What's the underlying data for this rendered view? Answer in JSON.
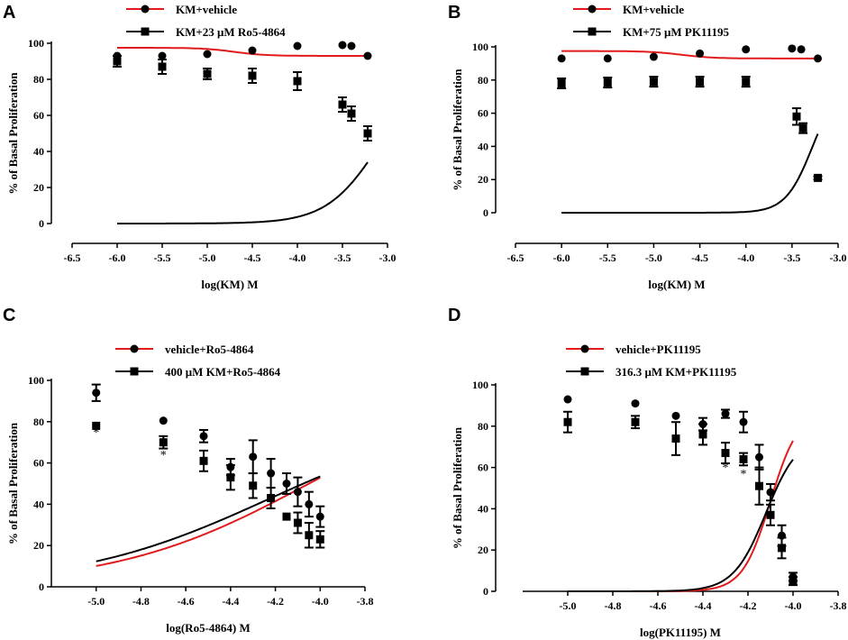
{
  "colors": {
    "red": "#e31a1c",
    "black": "#000000"
  },
  "chart_data": [
    {
      "panel": "A",
      "type": "scatter",
      "xlabel": "log(KM) M",
      "ylabel": "% of Basal Proliferation",
      "xlim": [
        -6.5,
        -3.0
      ],
      "ylim": [
        0,
        100
      ],
      "xticks": [
        "-6.5",
        "-6.0",
        "-5.5",
        "-5.0",
        "-4.5",
        "-4.0",
        "-3.5",
        "-3.0"
      ],
      "yticks": [
        "0",
        "20",
        "40",
        "60",
        "80",
        "100"
      ],
      "series": [
        {
          "name": "KM+vehicle",
          "color": "#e31a1c",
          "marker": "circle",
          "x": [
            -6.0,
            -5.5,
            -5.0,
            -4.5,
            -4.0,
            -3.5,
            -3.4,
            -3.22
          ],
          "y": [
            93,
            93,
            94,
            96,
            98.5,
            99,
            98.5,
            93
          ],
          "err": [
            0,
            0,
            0,
            0,
            0,
            0,
            0,
            0
          ],
          "curve": {
            "bottom": 93,
            "top": 97.5,
            "logEC50": -4.7,
            "hill": 2.5
          }
        },
        {
          "name": "KM+23 μM Ro5-4864",
          "color": "#000000",
          "marker": "square",
          "x": [
            -6.0,
            -5.5,
            -5.0,
            -4.5,
            -4.0,
            -3.5,
            -3.4,
            -3.22
          ],
          "y": [
            90,
            87,
            83,
            82,
            79,
            66,
            61,
            50
          ],
          "err": [
            3,
            4,
            3,
            4,
            5,
            4,
            4,
            4
          ],
          "curve": {
            "bottom": 0,
            "top": 85.5,
            "logEC50": -3.1,
            "hill": -1.5
          }
        }
      ],
      "annotations": []
    },
    {
      "panel": "B",
      "type": "scatter",
      "xlabel": "log(KM) M",
      "ylabel": "% of Basal Proliferation",
      "xlim": [
        -6.5,
        -3.0
      ],
      "ylim": [
        0,
        100
      ],
      "xticks": [
        "-6.5",
        "-6.0",
        "-5.5",
        "-5.0",
        "-4.5",
        "-4.0",
        "-3.5",
        "-3.0"
      ],
      "yticks": [
        "0",
        "20",
        "40",
        "60",
        "80",
        "100"
      ],
      "series": [
        {
          "name": "KM+vehicle",
          "color": "#e31a1c",
          "marker": "circle",
          "x": [
            -6.0,
            -5.5,
            -5.0,
            -4.5,
            -4.0,
            -3.5,
            -3.4,
            -3.22
          ],
          "y": [
            93,
            93,
            94,
            96,
            98.5,
            99,
            98.5,
            93
          ],
          "err": [
            0,
            0,
            0,
            0,
            0,
            0,
            0,
            0
          ],
          "curve": {
            "bottom": 93,
            "top": 97.5,
            "logEC50": -4.7,
            "hill": 2.5
          }
        },
        {
          "name": "KM+75 μM PK11195",
          "color": "#000000",
          "marker": "square",
          "x": [
            -6.0,
            -5.5,
            -5.0,
            -4.5,
            -4.0,
            -3.45,
            -3.38,
            -3.22
          ],
          "y": [
            78,
            78.5,
            79,
            79,
            79,
            58,
            51,
            21
          ],
          "err": [
            3,
            3,
            3,
            3,
            3,
            5,
            3,
            1
          ],
          "curve": {
            "bottom": 0,
            "top": 79,
            "logEC50": -3.28,
            "hill": -3.0
          }
        }
      ],
      "annotations": []
    },
    {
      "panel": "C",
      "type": "scatter",
      "xlabel": "log(Ro5-4864) M",
      "ylabel": "% of Basal Proliferation",
      "xlim": [
        -5.2,
        -3.8
      ],
      "ylim": [
        0,
        100
      ],
      "xticks": [
        "-5.0",
        "-4.8",
        "-4.6",
        "-4.4",
        "-4.2",
        "-4.0",
        "-3.8"
      ],
      "yticks": [
        "0",
        "20",
        "40",
        "60",
        "80",
        "100"
      ],
      "series": [
        {
          "name": "vehicle+Ro5-4864",
          "color": "#e31a1c",
          "marker": "circle",
          "x": [
            -5.0,
            -4.7,
            -4.52,
            -4.4,
            -4.3,
            -4.22,
            -4.15,
            -4.1,
            -4.05,
            -4.0
          ],
          "y": [
            94,
            80.5,
            73,
            58,
            63,
            55,
            50,
            46,
            40,
            34
          ],
          "err": [
            4,
            0,
            3,
            4,
            8,
            7,
            5,
            7,
            6,
            5
          ],
          "curve": {
            "bottom": 0,
            "top": 100,
            "logEC50": -4.05,
            "hill": -1.0
          }
        },
        {
          "name": "400 μM KM+Ro5-4864",
          "color": "#000000",
          "marker": "square",
          "x": [
            -5.0,
            -4.7,
            -4.52,
            -4.4,
            -4.3,
            -4.22,
            -4.15,
            -4.1,
            -4.05,
            -4.0
          ],
          "y": [
            78,
            70,
            61,
            53,
            49,
            43,
            34,
            31,
            25,
            23
          ],
          "err": [
            0,
            3,
            5,
            6,
            6,
            5,
            0,
            5,
            6,
            4
          ],
          "curve": {
            "bottom": 0,
            "top": 85,
            "logEC50": -4.23,
            "hill": -1.0
          }
        }
      ],
      "annotations": [
        {
          "text": "*",
          "x": -5.0,
          "y": 73
        },
        {
          "text": "*",
          "x": -4.7,
          "y": 62
        }
      ]
    },
    {
      "panel": "D",
      "type": "scatter",
      "xlabel": "log(PK11195) M",
      "ylabel": "% of Basal Proliferation",
      "xlim": [
        -5.2,
        -3.8
      ],
      "ylim": [
        0,
        100
      ],
      "xticks": [
        "-5.0",
        "-4.8",
        "-4.6",
        "-4.4",
        "-4.2",
        "-4.0",
        "-3.8"
      ],
      "yticks": [
        "0",
        "20",
        "40",
        "60",
        "80",
        "100"
      ],
      "series": [
        {
          "name": "vehicle+PK11195",
          "color": "#e31a1c",
          "marker": "circle",
          "x": [
            -5.0,
            -4.7,
            -4.52,
            -4.4,
            -4.3,
            -4.22,
            -4.15,
            -4.1,
            -4.05,
            -4.0
          ],
          "y": [
            93,
            91,
            85,
            81,
            86,
            82,
            65,
            48,
            27,
            7
          ],
          "err": [
            0,
            0,
            0,
            3,
            2,
            5,
            6,
            4,
            5,
            2
          ],
          "curve": {
            "bottom": 0,
            "top": 87.5,
            "logEC50": -4.1,
            "hill": -7.0
          }
        },
        {
          "name": "316.3 μM KM+PK11195",
          "color": "#000000",
          "marker": "square",
          "x": [
            -5.0,
            -4.7,
            -4.52,
            -4.4,
            -4.3,
            -4.22,
            -4.15,
            -4.1,
            -4.05,
            -4.0
          ],
          "y": [
            82,
            82,
            74,
            76,
            67,
            64,
            51,
            37,
            21,
            5
          ],
          "err": [
            5,
            3,
            8,
            5,
            5,
            3,
            9,
            5,
            5,
            2
          ],
          "curve": {
            "bottom": 0,
            "top": 76,
            "logEC50": -4.12,
            "hill": -6.0
          }
        }
      ],
      "annotations": [
        {
          "text": "*",
          "x": -4.3,
          "y": 58
        },
        {
          "text": "*",
          "x": -4.22,
          "y": 55
        }
      ]
    }
  ]
}
